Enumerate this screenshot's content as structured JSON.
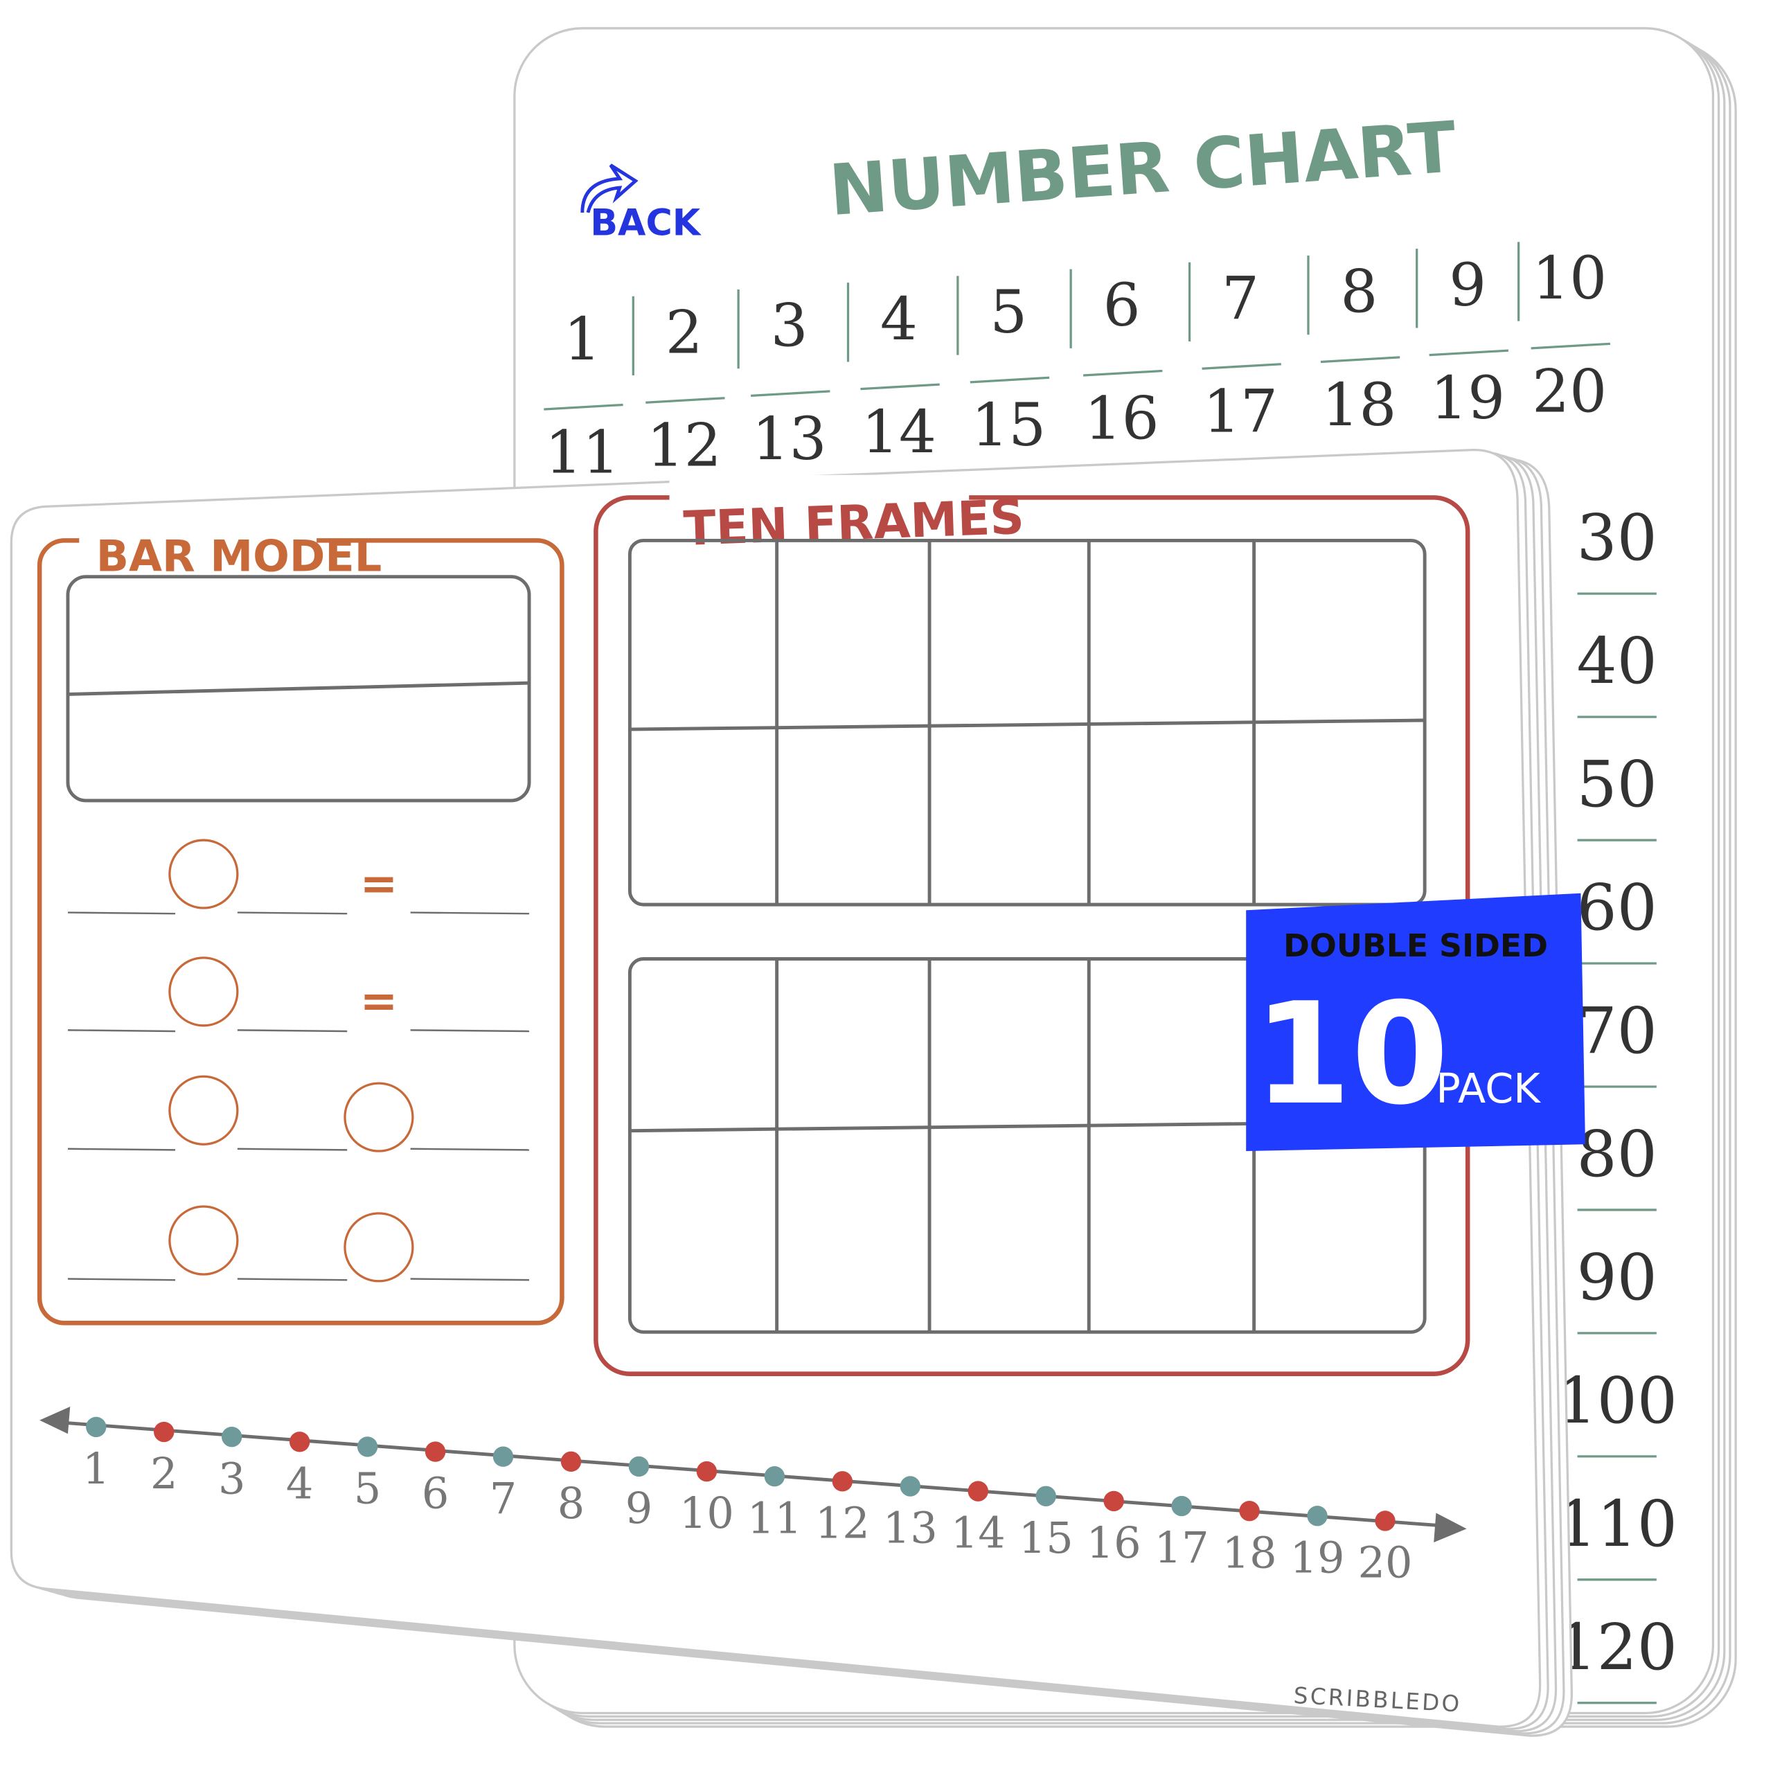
{
  "back_board": {
    "title": "NUMBER CHART",
    "back_label": "BACK",
    "row_1": [
      1,
      2,
      3,
      4,
      5,
      6,
      7,
      8,
      9,
      10
    ],
    "row_2": [
      11,
      12,
      13,
      14,
      15,
      16,
      17,
      18,
      19,
      20
    ],
    "right_column": [
      30,
      40,
      50,
      60,
      70,
      80,
      90,
      100,
      110,
      120
    ]
  },
  "front_board": {
    "bar_model": {
      "title": "BAR MODEL",
      "equals": [
        "=",
        "="
      ]
    },
    "ten_frames": {
      "title": "TEN FRAMES"
    },
    "number_line": [
      1,
      2,
      3,
      4,
      5,
      6,
      7,
      8,
      9,
      10,
      11,
      12,
      13,
      14,
      15,
      16,
      17,
      18,
      19,
      20
    ]
  },
  "badge": {
    "top": "DOUBLE SIDED",
    "number": "10",
    "unit": "PACK"
  },
  "brand": "SCRIBBLEDO"
}
